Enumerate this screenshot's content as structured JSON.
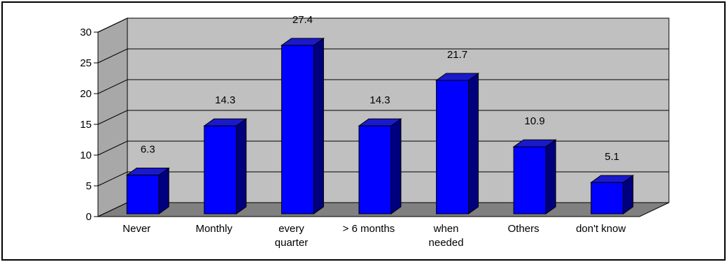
{
  "chart_data": {
    "type": "bar",
    "style": "3d-column",
    "categories": [
      [
        "Never"
      ],
      [
        "Monthly"
      ],
      [
        "every",
        "quarter"
      ],
      [
        "> 6 months"
      ],
      [
        "when",
        "needed"
      ],
      [
        "Others"
      ],
      [
        "don't know"
      ]
    ],
    "values": [
      6.3,
      14.3,
      27.4,
      14.3,
      21.7,
      10.9,
      5.1
    ],
    "data_labels": [
      "6.3",
      "14.3",
      "27.4",
      "14.3",
      "21.7",
      "10.9",
      "5.1"
    ],
    "ylim": [
      0,
      30
    ],
    "yticks": [
      0,
      5,
      10,
      15,
      20,
      25,
      30
    ],
    "grid": true,
    "legend": "none",
    "colors": {
      "bar_front": "#0000ff",
      "bar_side": "#00007f",
      "bar_top": "#1a1acc",
      "back_wall": "#c0c0c0",
      "side_wall": "#a8a8a8",
      "floor": "#808080",
      "grid": "#000000"
    }
  }
}
